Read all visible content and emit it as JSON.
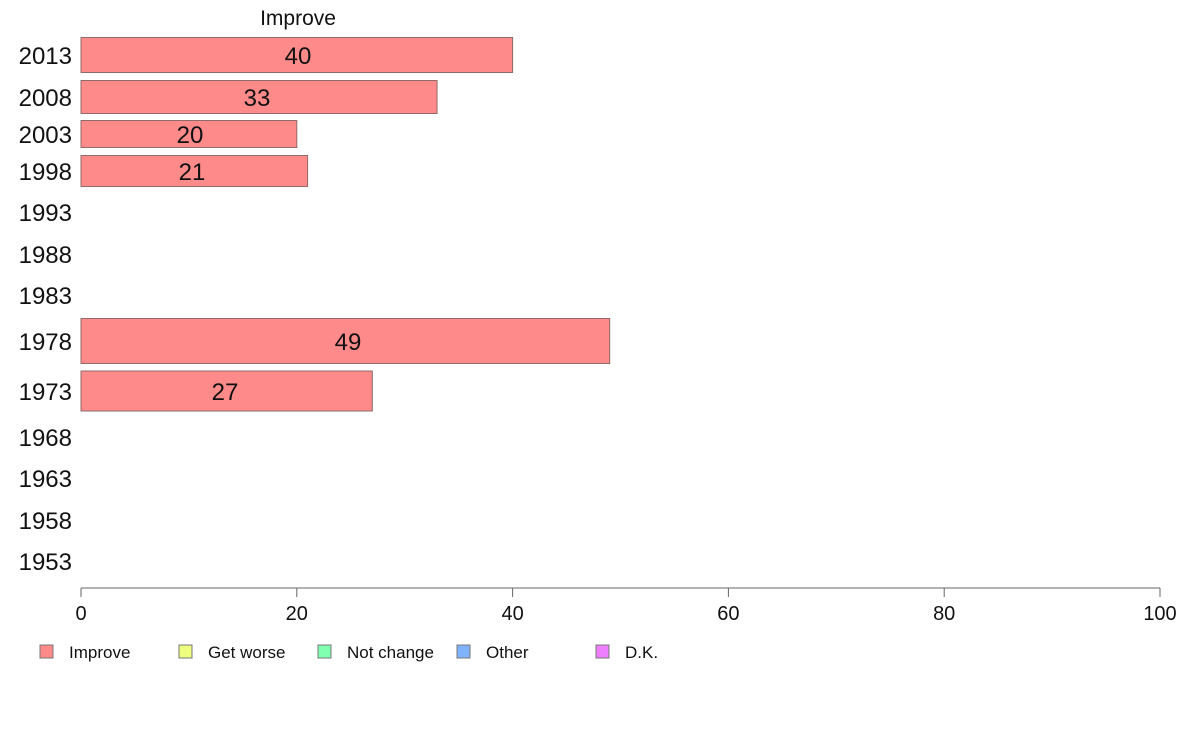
{
  "chart_data": {
    "type": "bar",
    "orientation": "horizontal",
    "title": "Improve",
    "categories": [
      "2013",
      "2008",
      "2003",
      "1998",
      "1993",
      "1988",
      "1983",
      "1978",
      "1973",
      "1968",
      "1963",
      "1958",
      "1953"
    ],
    "series": [
      {
        "name": "Improve",
        "color": "#ff8a8a",
        "values": [
          40,
          33,
          20,
          21,
          null,
          null,
          null,
          49,
          27,
          null,
          null,
          null,
          null
        ],
        "labels": [
          "40",
          "33",
          "20",
          "21",
          "",
          "",
          "",
          "49",
          "27",
          "",
          "",
          "",
          ""
        ]
      }
    ],
    "xlim": [
      0,
      100
    ],
    "xticks": [
      0,
      20,
      40,
      60,
      80,
      100
    ],
    "xtick_labels": [
      "0",
      "20",
      "40",
      "60",
      "80",
      "100"
    ],
    "grid": false,
    "legend_position": "bottom-left",
    "legend": [
      {
        "label": "Improve",
        "color": "#ff8a8a"
      },
      {
        "label": "Get worse",
        "color": "#eeff80"
      },
      {
        "label": "Not change",
        "color": "#80ffb0"
      },
      {
        "label": "Other",
        "color": "#80b3ff"
      },
      {
        "label": "D.K.",
        "color": "#ee80ff"
      }
    ]
  }
}
